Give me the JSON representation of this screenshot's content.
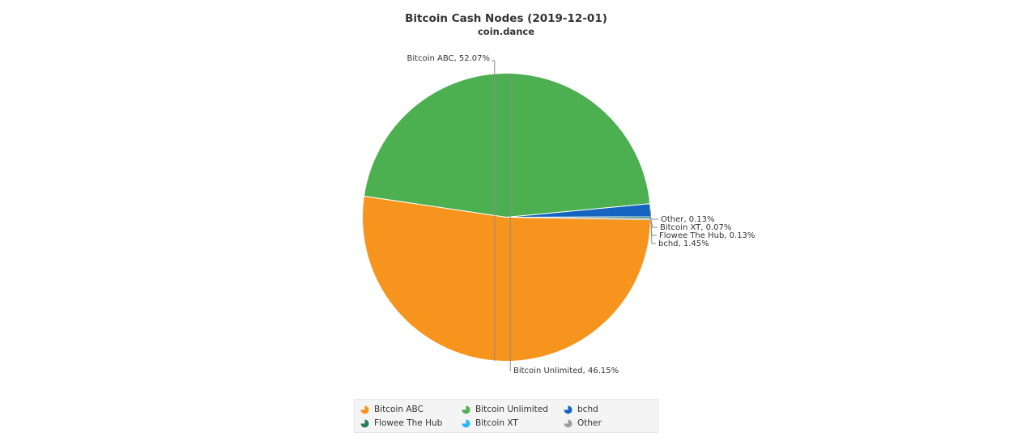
{
  "chart_data": {
    "type": "pie",
    "title": "Bitcoin Cash Nodes (2019-12-01)",
    "subtitle": "coin.dance",
    "slices": [
      {
        "label": "Bitcoin ABC",
        "value": 52.07,
        "color": "#f7941d"
      },
      {
        "label": "Bitcoin Unlimited",
        "value": 46.15,
        "color": "#4caf50"
      },
      {
        "label": "bchd",
        "value": 1.45,
        "color": "#1565c0"
      },
      {
        "label": "Flowee The Hub",
        "value": 0.13,
        "color": "#2e7d52"
      },
      {
        "label": "Bitcoin XT",
        "value": 0.07,
        "color": "#29b6f6"
      },
      {
        "label": "Other",
        "value": 0.13,
        "color": "#9e9e9e"
      }
    ],
    "data_labels": [
      "Bitcoin ABC, 52.07%",
      "Bitcoin Unlimited, 46.15%",
      "bchd, 1.45%",
      "Flowee The Hub, 0.13%",
      "Bitcoin XT, 0.07%",
      "Other, 0.13%"
    ],
    "legend_position": "bottom"
  }
}
